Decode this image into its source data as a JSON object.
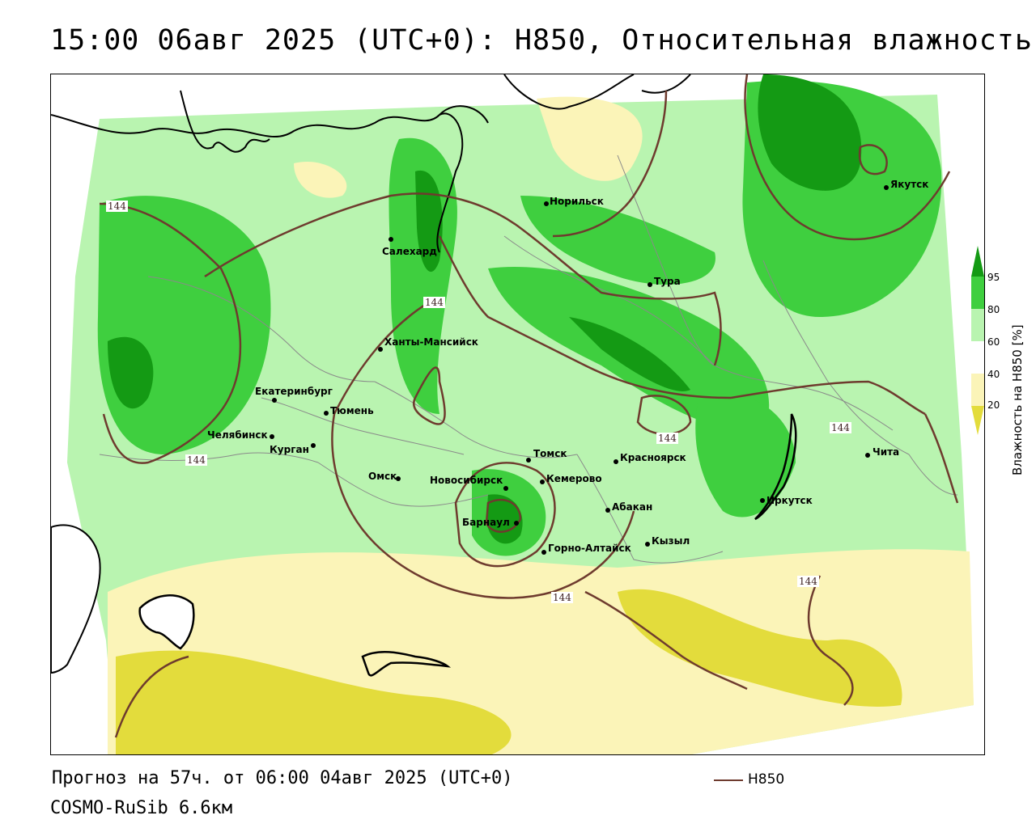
{
  "title": "15:00 06авг 2025 (UTC+0): H850, Относительная влажность",
  "footer": {
    "forecast": "Прогноз на 57ч. от 06:00 04авг 2025 (UTC+0)",
    "model": "COSMO-RuSib 6.6км"
  },
  "legend": {
    "line_label": "H850",
    "line_color": "#6e3b2e"
  },
  "colorbar": {
    "label": "Влажность на H850 [%]",
    "ticks": [
      "95",
      "80",
      "60",
      "40",
      "20"
    ],
    "colors": [
      "#149a14",
      "#3fcf3f",
      "#b9f4b0",
      "#ffffff",
      "#fbf4b8",
      "#e3dc3c"
    ]
  },
  "contour_labels": [
    "144",
    "144",
    "144",
    "144",
    "144",
    "144",
    "144"
  ],
  "cities": [
    {
      "name": "Якутск"
    },
    {
      "name": "Норильск"
    },
    {
      "name": "Салехард"
    },
    {
      "name": "Тура"
    },
    {
      "name": "Ханты-Мансийск"
    },
    {
      "name": "Екатеринбург"
    },
    {
      "name": "Тюмень"
    },
    {
      "name": "Челябинск"
    },
    {
      "name": "Курган"
    },
    {
      "name": "Томск"
    },
    {
      "name": "Красноярск"
    },
    {
      "name": "Омск"
    },
    {
      "name": "Новосибирск"
    },
    {
      "name": "Кемерово"
    },
    {
      "name": "Абакан"
    },
    {
      "name": "Барнаул"
    },
    {
      "name": "Горно-Алтайск"
    },
    {
      "name": "Кызыл"
    },
    {
      "name": "Иркутск"
    },
    {
      "name": "Чита"
    }
  ]
}
